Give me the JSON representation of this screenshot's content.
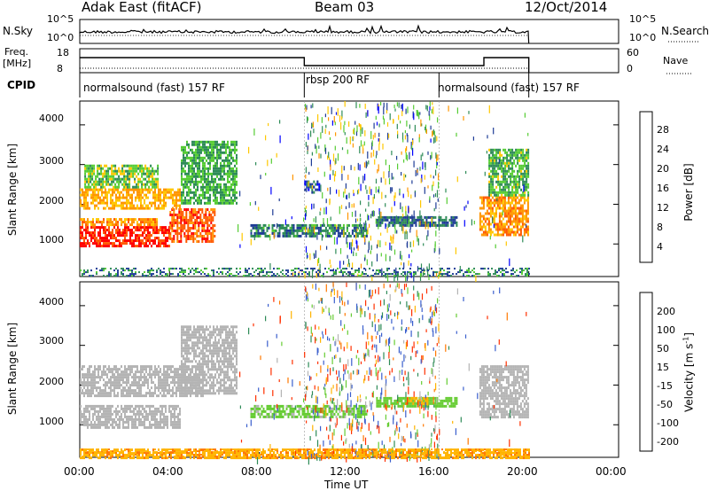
{
  "header": {
    "station": "Adak East (fitACF)",
    "beam": "Beam 03",
    "date": "12/Oct/2014"
  },
  "noise_panel": {
    "left_label": "N.Sky",
    "right_label": "N.Search",
    "ticks": [
      "10^5",
      "10^0"
    ]
  },
  "freq_panel": {
    "left_label": "Freq.",
    "left_unit": "[MHz]",
    "left_ticks": [
      "18",
      "8"
    ],
    "right_label": "Nave",
    "right_ticks": [
      "60",
      "0"
    ]
  },
  "cpid": {
    "label": "CPID",
    "segments": [
      {
        "label": "normalsound (fast) 157 RF",
        "start_h": 0,
        "end_h": 10
      },
      {
        "label": "rbsp 200 RF",
        "start_h": 10,
        "end_h": 16
      },
      {
        "label": "normalsound (fast) 157 RF",
        "start_h": 16,
        "end_h": 20
      }
    ]
  },
  "power_colorbar": {
    "label": "Power [dB]",
    "ticks": [
      "28",
      "24",
      "20",
      "16",
      "12",
      "8",
      "4"
    ],
    "colors": [
      "#ff0000",
      "#ff5a00",
      "#ff9600",
      "#ffc800",
      "#55cc33",
      "#2e8b57",
      "#1e3c96",
      "#0000ff"
    ]
  },
  "velocity_colorbar": {
    "label_main": "Velocity [m s",
    "label_exp": "-1",
    "label_end": "]",
    "ticks": [
      "200",
      "100",
      "50",
      "15",
      "-15",
      "-50",
      "-100",
      "-200"
    ],
    "colors": [
      "#1a1a9a",
      "#3a5fcd",
      "#2e8b57",
      "#66cc33",
      "#b4b4b4",
      "#ffb400",
      "#ff7800",
      "#ff3000",
      "#e60000"
    ]
  },
  "chart_data": {
    "type": "heatmap",
    "xlabel": "Time UT",
    "x_ticks": [
      "00:00",
      "04:00",
      "08:00",
      "12:00",
      "16:00",
      "20:00",
      "00:00"
    ],
    "x_range_hours": [
      0,
      24
    ],
    "data_end_hour": 20,
    "ylabel": "Slant Range [km]",
    "y_ticks": [
      "4000",
      "3000",
      "2000",
      "1000"
    ],
    "y_range_km": [
      180,
      4600
    ],
    "panels": [
      {
        "name": "Power",
        "unit": "dB",
        "regions": [
          {
            "t": [
              0.0,
              4.0
            ],
            "r": [
              950,
              1450
            ],
            "level": 29
          },
          {
            "t": [
              4.0,
              6.0
            ],
            "r": [
              1050,
              1900
            ],
            "level": 26
          },
          {
            "t": [
              0.0,
              3.5
            ],
            "r": [
              1450,
              1650
            ],
            "level": 22
          },
          {
            "t": [
              0.0,
              4.5
            ],
            "r": [
              1900,
              2400
            ],
            "level": 20
          },
          {
            "t": [
              0.2,
              3.5
            ],
            "r": [
              2400,
              3000
            ],
            "level": 14
          },
          {
            "t": [
              4.5,
              7.0
            ],
            "r": [
              2000,
              3600
            ],
            "level": 12
          },
          {
            "t": [
              7.6,
              10.3
            ],
            "r": [
              1200,
              1500
            ],
            "level": 9
          },
          {
            "t": [
              10.3,
              12.8
            ],
            "r": [
              1200,
              1500
            ],
            "level": 10
          },
          {
            "t": [
              13.2,
              16.8
            ],
            "r": [
              1450,
              1700
            ],
            "level": 8
          },
          {
            "t": [
              10.0,
              10.7
            ],
            "r": [
              2300,
              2600
            ],
            "level": 6
          },
          {
            "t": [
              17.8,
              20.0
            ],
            "r": [
              1200,
              2200
            ],
            "level": 22
          },
          {
            "t": [
              18.2,
              20.0
            ],
            "r": [
              2200,
              3400
            ],
            "level": 13
          }
        ]
      },
      {
        "name": "Velocity",
        "unit": "m s-1",
        "regions": [
          {
            "t": [
              0.0,
              4.5
            ],
            "r": [
              950,
              1500
            ],
            "value": 0
          },
          {
            "t": [
              0.0,
              5.5
            ],
            "r": [
              1700,
              2500
            ],
            "value": 0
          },
          {
            "t": [
              4.5,
              7.0
            ],
            "r": [
              1800,
              3500
            ],
            "value": 0
          },
          {
            "t": [
              7.6,
              12.8
            ],
            "r": [
              1200,
              1500
            ],
            "value": 25
          },
          {
            "t": [
              13.2,
              16.8
            ],
            "r": [
              1450,
              1700
            ],
            "value": 30
          },
          {
            "t": [
              14.5,
              15.5
            ],
            "r": [
              1500,
              1700
            ],
            "value": -40
          },
          {
            "t": [
              17.8,
              20.0
            ],
            "r": [
              1200,
              2500
            ],
            "value": 0
          },
          {
            "t": [
              0.0,
              20.0
            ],
            "r": [
              180,
              400
            ],
            "value": -40
          }
        ]
      }
    ]
  }
}
